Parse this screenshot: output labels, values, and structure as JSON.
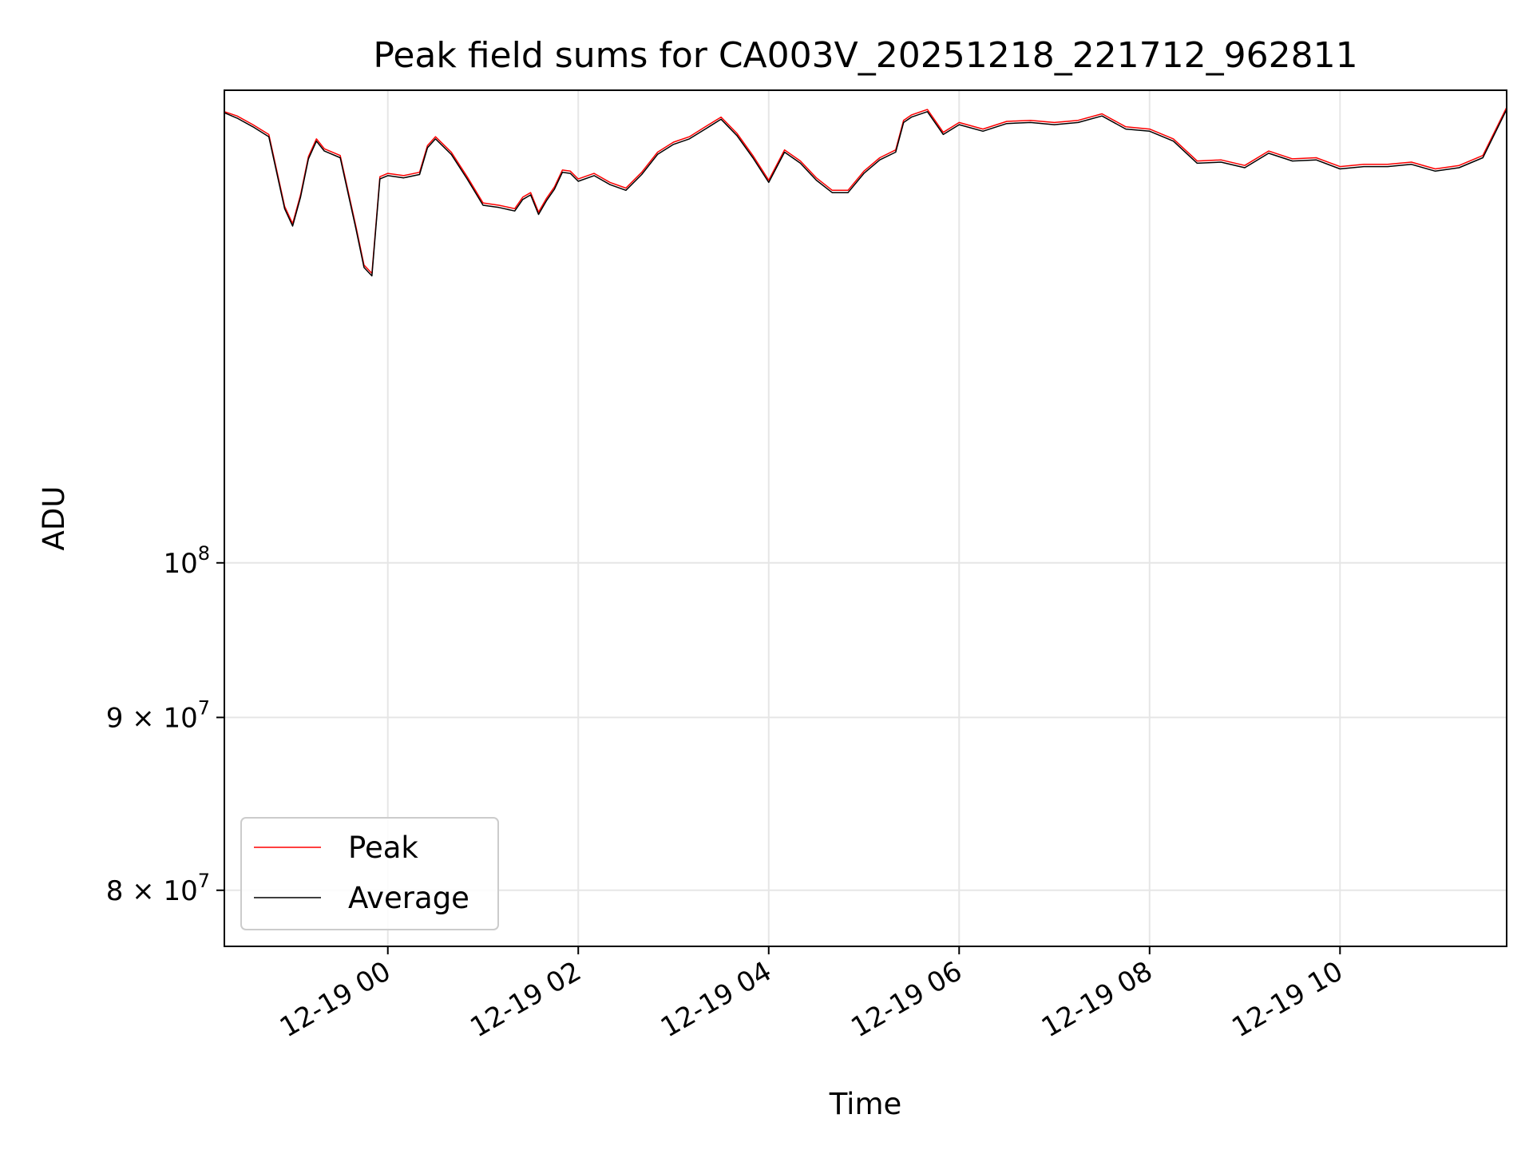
{
  "chart_data": {
    "type": "line",
    "title": "Peak field sums for CA003V_20251218_221712_962811",
    "xlabel": "Time",
    "ylabel": "ADU",
    "y_scale": "log",
    "ylim": [
      77000000,
      138000000
    ],
    "xlim": [
      "2025-12-18 22:17",
      "2025-12-19 11:45"
    ],
    "grid": true,
    "legend_position": "lower-left",
    "x_ticks": [
      {
        "value": "2025-12-19 00:00",
        "label": "12-19 00"
      },
      {
        "value": "2025-12-19 02:00",
        "label": "12-19 02"
      },
      {
        "value": "2025-12-19 04:00",
        "label": "12-19 04"
      },
      {
        "value": "2025-12-19 06:00",
        "label": "12-19 06"
      },
      {
        "value": "2025-12-19 08:00",
        "label": "12-19 08"
      },
      {
        "value": "2025-12-19 10:00",
        "label": "12-19 10"
      }
    ],
    "y_ticks": [
      {
        "value": 100000000,
        "mantissa": "",
        "exponent": "8"
      },
      {
        "value": 90000000,
        "mantissa": "9",
        "exponent": "7"
      },
      {
        "value": 80000000,
        "mantissa": "8",
        "exponent": "7"
      }
    ],
    "x": [
      "2025-12-18 22:17",
      "2025-12-18 22:25",
      "2025-12-18 22:35",
      "2025-12-18 22:45",
      "2025-12-18 22:55",
      "2025-12-18 23:00",
      "2025-12-18 23:05",
      "2025-12-18 23:10",
      "2025-12-18 23:15",
      "2025-12-18 23:20",
      "2025-12-18 23:30",
      "2025-12-18 23:40",
      "2025-12-18 23:45",
      "2025-12-18 23:50",
      "2025-12-18 23:55",
      "2025-12-19 00:00",
      "2025-12-19 00:10",
      "2025-12-19 00:20",
      "2025-12-19 00:25",
      "2025-12-19 00:30",
      "2025-12-19 00:40",
      "2025-12-19 00:50",
      "2025-12-19 01:00",
      "2025-12-19 01:10",
      "2025-12-19 01:20",
      "2025-12-19 01:25",
      "2025-12-19 01:30",
      "2025-12-19 01:35",
      "2025-12-19 01:40",
      "2025-12-19 01:45",
      "2025-12-19 01:50",
      "2025-12-19 01:55",
      "2025-12-19 02:00",
      "2025-12-19 02:10",
      "2025-12-19 02:20",
      "2025-12-19 02:30",
      "2025-12-19 02:40",
      "2025-12-19 02:50",
      "2025-12-19 03:00",
      "2025-12-19 03:10",
      "2025-12-19 03:20",
      "2025-12-19 03:30",
      "2025-12-19 03:40",
      "2025-12-19 03:50",
      "2025-12-19 04:00",
      "2025-12-19 04:10",
      "2025-12-19 04:20",
      "2025-12-19 04:30",
      "2025-12-19 04:40",
      "2025-12-19 04:50",
      "2025-12-19 05:00",
      "2025-12-19 05:10",
      "2025-12-19 05:20",
      "2025-12-19 05:25",
      "2025-12-19 05:30",
      "2025-12-19 05:40",
      "2025-12-19 05:50",
      "2025-12-19 06:00",
      "2025-12-19 06:15",
      "2025-12-19 06:30",
      "2025-12-19 06:45",
      "2025-12-19 07:00",
      "2025-12-19 07:15",
      "2025-12-19 07:30",
      "2025-12-19 07:45",
      "2025-12-19 08:00",
      "2025-12-19 08:15",
      "2025-12-19 08:30",
      "2025-12-19 08:45",
      "2025-12-19 09:00",
      "2025-12-19 09:15",
      "2025-12-19 09:30",
      "2025-12-19 09:45",
      "2025-12-19 10:00",
      "2025-12-19 10:15",
      "2025-12-19 10:30",
      "2025-12-19 10:45",
      "2025-12-19 11:00",
      "2025-12-19 11:15",
      "2025-12-19 11:30",
      "2025-12-19 11:45"
    ],
    "series": [
      {
        "name": "Peak",
        "color": "#ff0000",
        "values": [
          136000000,
          135600000,
          134800000,
          133900000,
          127500000,
          126000000,
          128500000,
          131900000,
          133500000,
          132600000,
          132000000,
          125700000,
          122500000,
          121800000,
          130100000,
          130400000,
          130200000,
          130500000,
          132900000,
          133700000,
          132300000,
          130100000,
          127800000,
          127600000,
          127300000,
          128300000,
          128700000,
          127000000,
          128200000,
          129200000,
          130700000,
          130600000,
          129900000,
          130400000,
          129600000,
          129100000,
          130500000,
          132300000,
          133200000,
          133700000,
          134600000,
          135500000,
          134000000,
          132000000,
          129800000,
          132500000,
          131500000,
          130000000,
          128900000,
          128900000,
          130600000,
          131800000,
          132500000,
          135200000,
          135700000,
          136200000,
          134100000,
          135000000,
          134400000,
          135100000,
          135200000,
          135000000,
          135200000,
          135800000,
          134600000,
          134400000,
          133500000,
          131500000,
          131600000,
          131100000,
          132400000,
          131700000,
          131800000,
          131000000,
          131200000,
          131200000,
          131400000,
          130800000,
          131100000,
          132000000,
          136400000
        ]
      },
      {
        "name": "Average",
        "color": "#000000",
        "values": [
          135900000,
          135400000,
          134600000,
          133700000,
          127300000,
          125800000,
          128300000,
          131700000,
          133300000,
          132400000,
          131800000,
          125500000,
          122300000,
          121600000,
          129900000,
          130200000,
          130000000,
          130300000,
          132700000,
          133500000,
          132100000,
          129900000,
          127600000,
          127400000,
          127100000,
          128100000,
          128500000,
          126800000,
          128000000,
          129000000,
          130500000,
          130400000,
          129700000,
          130200000,
          129400000,
          128900000,
          130300000,
          132100000,
          133000000,
          133500000,
          134400000,
          135300000,
          133800000,
          131800000,
          129600000,
          132300000,
          131300000,
          129800000,
          128700000,
          128700000,
          130400000,
          131600000,
          132300000,
          135000000,
          135500000,
          136000000,
          133900000,
          134800000,
          134200000,
          134900000,
          135000000,
          134800000,
          135000000,
          135600000,
          134400000,
          134200000,
          133300000,
          131300000,
          131400000,
          130900000,
          132200000,
          131500000,
          131600000,
          130800000,
          131000000,
          131000000,
          131200000,
          130600000,
          130900000,
          131800000,
          136200000
        ]
      }
    ]
  }
}
